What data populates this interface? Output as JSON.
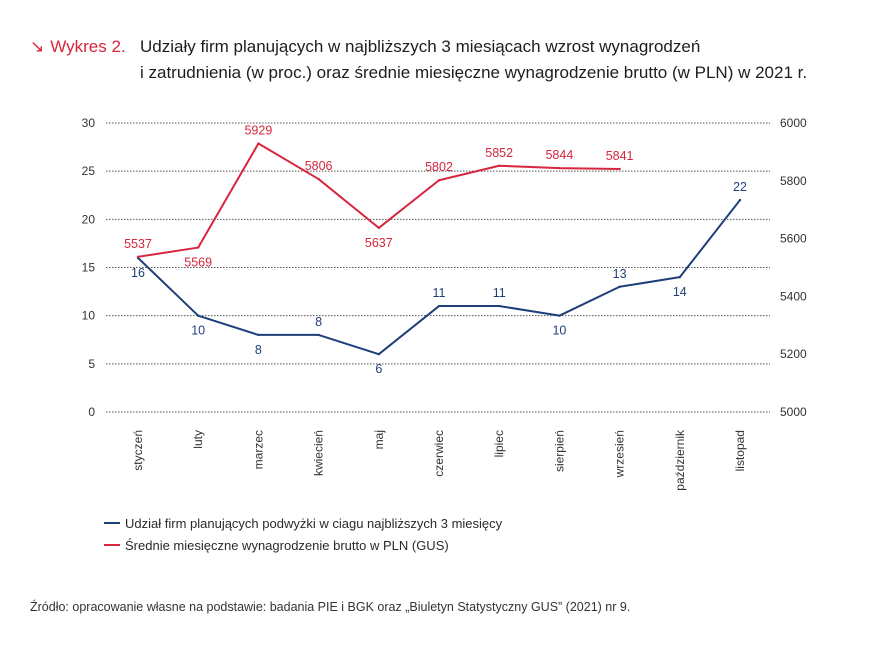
{
  "figure": {
    "prefix": "Wykres 2.",
    "title_line1": "Udziały firm planujących w najbliższych 3 miesiącach wzrost wynagrodzeń",
    "title_line2": "i zatrudnienia (w proc.) oraz średnie miesięczne wynagrodzenie brutto (w PLN) w 2021 r.",
    "source": "Źródło: opracowanie własne na podstawie: badania PIE i BGK oraz „Biuletyn Statystyczny GUS” (2021) nr 9."
  },
  "colors": {
    "accent": "#d7263d",
    "blue": "#1f3f7a",
    "red": "#d7263d",
    "grid": "#555555",
    "axis_text": "#333333"
  },
  "chart_data": {
    "type": "line",
    "categories": [
      "styczeń",
      "luty",
      "marzec",
      "kwiecień",
      "maj",
      "czerwiec",
      "lipiec",
      "sierpień",
      "wrzesień",
      "październik",
      "listopad"
    ],
    "y_left": {
      "ylim": [
        0,
        30
      ],
      "ticks": [
        0,
        5,
        10,
        15,
        20,
        25,
        30
      ]
    },
    "y_right": {
      "ylim": [
        5000,
        6000
      ],
      "ticks": [
        5000,
        5200,
        5400,
        5600,
        5800,
        6000
      ]
    },
    "grid": true,
    "legend_position": "bottom-left",
    "series": [
      {
        "name": "Udział firm planujących podwyżki w ciagu najbliższych 3 miesięcy",
        "axis": "left",
        "color": "#1f3f7a",
        "values": [
          16,
          10,
          8,
          8,
          6,
          11,
          11,
          10,
          13,
          14,
          22
        ],
        "labels": [
          "16",
          "10",
          "8",
          "8",
          "6",
          "11",
          "11",
          "10",
          "13",
          "14",
          "22"
        ]
      },
      {
        "name": "Średnie miesięczne wynagrodzenie brutto w PLN (GUS)",
        "axis": "right",
        "color": "#d7263d",
        "values": [
          5537,
          5569,
          5929,
          5806,
          5637,
          5802,
          5852,
          5844,
          5841,
          null,
          null
        ],
        "labels": [
          "5537",
          "5569",
          "5929",
          "5806",
          "5637",
          "5802",
          "5852",
          "5844",
          "5841",
          "",
          ""
        ]
      }
    ]
  }
}
